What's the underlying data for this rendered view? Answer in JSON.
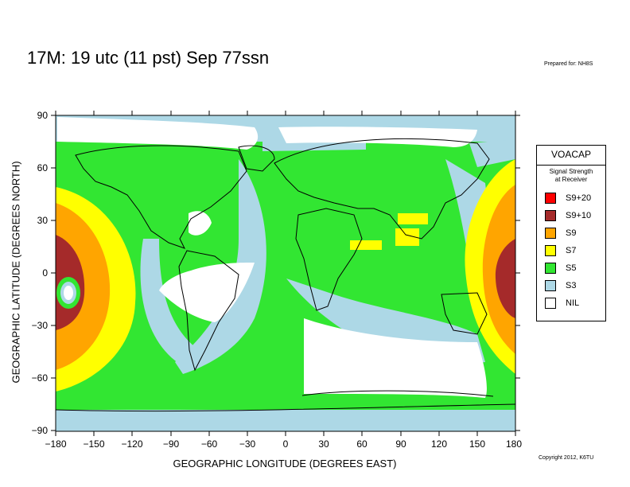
{
  "header": {
    "title": "17M:  19 utc (11 pst) Sep 77ssn",
    "prepared": "Prepared for: NH8S"
  },
  "axes": {
    "ylabel": "GEOGRAPHIC LATITUDE (DEGREES NORTH)",
    "xlabel": "GEOGRAPHIC LONGITUDE (DEGREES EAST)",
    "lat_ticks": [
      "90",
      "60",
      "30",
      "0",
      "−30",
      "−60",
      "−90"
    ],
    "lon_ticks": [
      "−180",
      "−150",
      "−120",
      "−90",
      "−60",
      "−30",
      "0",
      "30",
      "60",
      "90",
      "120",
      "150",
      "180"
    ],
    "lat_range": [
      -90,
      90
    ],
    "lon_range": [
      -180,
      180
    ]
  },
  "legend": {
    "title": "VOACAP",
    "subtitle_line1": "Signal Strength",
    "subtitle_line2": "at Receiver",
    "items": [
      {
        "label": "S9+20",
        "color": "#ff0000"
      },
      {
        "label": "S9+10",
        "color": "#a52a2a"
      },
      {
        "label": "S9",
        "color": "#ffa500"
      },
      {
        "label": "S7",
        "color": "#ffff00"
      },
      {
        "label": "S5",
        "color": "#32e632"
      },
      {
        "label": "S3",
        "color": "#add8e6"
      },
      {
        "label": "NIL",
        "color": "#ffffff"
      }
    ]
  },
  "footer": {
    "copyright": "Copyright 2012, K6TU"
  }
}
